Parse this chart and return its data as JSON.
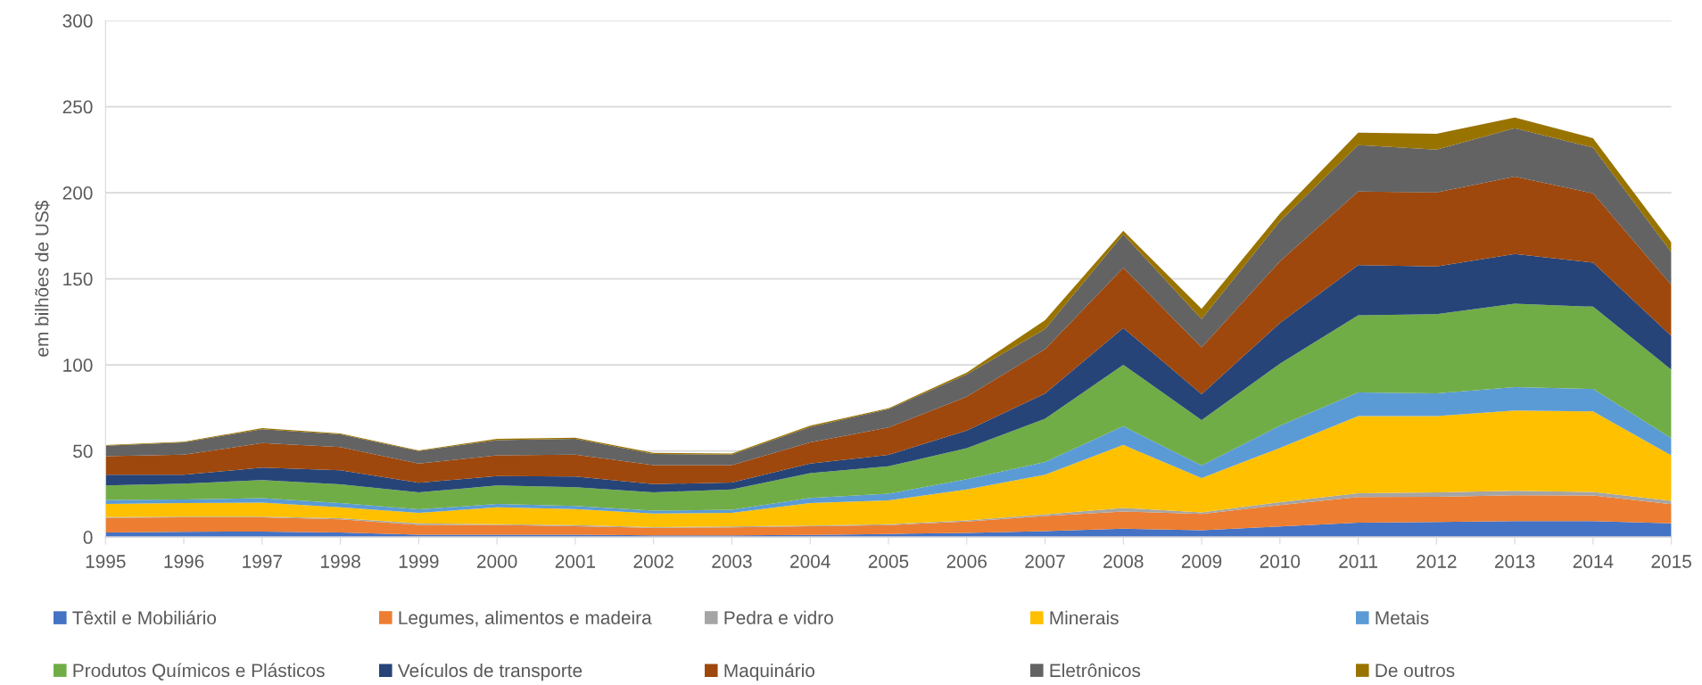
{
  "chart_data": {
    "type": "area",
    "stacked": true,
    "ylabel": "em bilhões de US$",
    "x": [
      1995,
      1996,
      1997,
      1998,
      1999,
      2000,
      2001,
      2002,
      2003,
      2004,
      2005,
      2006,
      2007,
      2008,
      2009,
      2010,
      2011,
      2012,
      2013,
      2014,
      2015
    ],
    "xlim": [
      1995,
      2015
    ],
    "xticks": [
      1995,
      1996,
      1997,
      1998,
      1999,
      2000,
      2001,
      2002,
      2003,
      2004,
      2005,
      2006,
      2007,
      2008,
      2009,
      2010,
      2011,
      2012,
      2013,
      2014,
      2015
    ],
    "ylim": [
      0,
      300
    ],
    "yticks": [
      0,
      50,
      100,
      150,
      200,
      250,
      300
    ],
    "grid": "y",
    "legend": "bottom",
    "series": [
      {
        "name": "Têxtil e Mobiliário",
        "color": "#4472c4",
        "values": [
          2.6,
          3.0,
          3.2,
          2.6,
          1.3,
          1.3,
          1.3,
          1.0,
          1.0,
          1.2,
          1.8,
          2.4,
          3.4,
          4.8,
          3.9,
          6.2,
          8.3,
          8.8,
          9.3,
          9.3,
          7.9
        ]
      },
      {
        "name": "Legumes, alimentos e madeira",
        "color": "#ed7d31",
        "values": [
          8.6,
          8.4,
          8.2,
          7.7,
          5.8,
          5.8,
          5.0,
          4.4,
          4.6,
          5.1,
          5.1,
          6.6,
          8.8,
          10.0,
          9.5,
          12.4,
          15.0,
          14.6,
          15.0,
          14.9,
          11.2
        ]
      },
      {
        "name": "Pedra e vidro",
        "color": "#a5a5a5",
        "values": [
          0.4,
          0.4,
          0.4,
          0.7,
          0.8,
          0.4,
          0.6,
          0.4,
          0.6,
          0.4,
          0.5,
          0.6,
          0.9,
          2.1,
          0.9,
          1.7,
          2.2,
          2.5,
          2.6,
          2.0,
          1.9
        ]
      },
      {
        "name": "Minerais",
        "color": "#ffc000",
        "values": [
          7.6,
          8.0,
          8.2,
          6.3,
          6.1,
          9.8,
          9.4,
          7.9,
          7.9,
          13.0,
          13.9,
          18.0,
          23.1,
          36.6,
          19.9,
          31.5,
          44.7,
          44.3,
          46.6,
          46.8,
          26.4
        ]
      },
      {
        "name": "Metais",
        "color": "#5b9bd5",
        "values": [
          2.4,
          2.0,
          2.6,
          2.5,
          2.1,
          1.9,
          1.8,
          1.6,
          1.8,
          3.0,
          3.9,
          6.0,
          7.4,
          10.9,
          7.4,
          12.9,
          13.8,
          13.3,
          13.6,
          13.0,
          10.0
        ]
      },
      {
        "name": "Produtos Químicos e Plásticos",
        "color": "#70ad47",
        "values": [
          8.4,
          9.2,
          10.5,
          10.8,
          9.8,
          10.8,
          10.9,
          10.7,
          11.7,
          14.4,
          15.9,
          18.0,
          25.1,
          35.7,
          26.3,
          36.0,
          44.8,
          46.0,
          48.4,
          47.8,
          39.8
        ]
      },
      {
        "name": "Veículos de transporte",
        "color": "#264478",
        "values": [
          6.2,
          5.2,
          7.2,
          8.2,
          5.6,
          5.4,
          6.1,
          4.8,
          4.0,
          5.6,
          6.6,
          10.3,
          14.7,
          21.3,
          15.0,
          23.6,
          29.2,
          27.6,
          28.9,
          25.6,
          19.5
        ]
      },
      {
        "name": "Maquinário",
        "color": "#9e480e",
        "values": [
          10.8,
          11.6,
          14.3,
          13.4,
          11.2,
          12.0,
          12.7,
          10.9,
          10.1,
          12.3,
          15.9,
          19.6,
          25.7,
          35.0,
          27.3,
          35.9,
          42.7,
          43.1,
          44.9,
          40.2,
          29.7
        ]
      },
      {
        "name": "Eletrônicos",
        "color": "#636363",
        "values": [
          6.0,
          7.2,
          8.0,
          7.5,
          7.2,
          8.9,
          9.3,
          6.6,
          6.2,
          8.9,
          10.7,
          13.0,
          11.7,
          19.4,
          16.4,
          23.3,
          26.9,
          24.8,
          28.2,
          26.6,
          19.0
        ]
      },
      {
        "name": "De outros",
        "color": "#997300",
        "values": [
          0.4,
          0.4,
          0.6,
          0.4,
          0.4,
          0.8,
          0.6,
          0.6,
          0.6,
          0.8,
          0.5,
          1.0,
          5.2,
          2.1,
          6.0,
          4.3,
          7.3,
          9.2,
          6.2,
          5.5,
          5.7
        ]
      }
    ]
  }
}
